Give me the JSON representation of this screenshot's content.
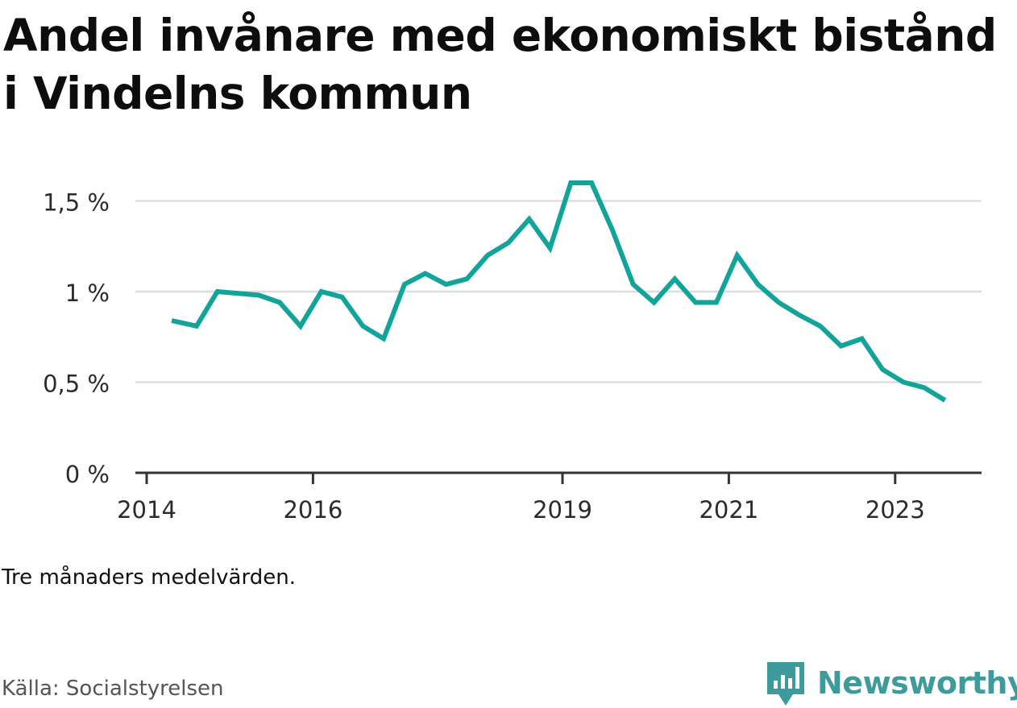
{
  "title": "Andel invånare med ekonomiskt bistånd i Vindelns kommun",
  "note": "Tre månaders medelvärden.",
  "source": "Källa: Socialstyrelsen",
  "brand": "Newsworthy",
  "colors": {
    "line": "#12a39b",
    "grid": "#dddddd",
    "axis": "#333333",
    "brand": "#3d9b9b"
  },
  "icons": {
    "logo": "bar-chart-speech-bubble-icon"
  },
  "chart_data": {
    "type": "line",
    "ylim": [
      0,
      1.6
    ],
    "grid": true,
    "y_ticks": [
      {
        "value": 0,
        "label": "0 %"
      },
      {
        "value": 0.5,
        "label": "0,5 %"
      },
      {
        "value": 1,
        "label": "1 %"
      },
      {
        "value": 1.5,
        "label": "1,5 %"
      }
    ],
    "x_ticks": [
      {
        "value": 2014,
        "label": "2014"
      },
      {
        "value": 2016,
        "label": "2016"
      },
      {
        "value": 2019,
        "label": "2019"
      },
      {
        "value": 2021,
        "label": "2021"
      },
      {
        "value": 2023,
        "label": "2023"
      }
    ],
    "series": [
      {
        "x": [
          2014.3,
          2014.6,
          2014.85,
          2015.1,
          2015.35,
          2015.6,
          2015.85,
          2016.1,
          2016.35,
          2016.6,
          2016.85,
          2017.1,
          2017.35,
          2017.6,
          2017.85,
          2018.1,
          2018.35,
          2018.6,
          2018.85,
          2019.1,
          2019.35,
          2019.6,
          2019.85,
          2020.1,
          2020.35,
          2020.6,
          2020.85,
          2021.1,
          2021.35,
          2021.6,
          2021.85,
          2022.1,
          2022.35,
          2022.6,
          2022.85,
          2023.1,
          2023.35,
          2023.6
        ],
        "values": [
          0.84,
          0.81,
          1.0,
          0.99,
          0.98,
          0.94,
          0.81,
          1.0,
          0.97,
          0.81,
          0.74,
          1.04,
          1.1,
          1.04,
          1.07,
          1.2,
          1.27,
          1.4,
          1.24,
          1.6,
          1.6,
          1.34,
          1.04,
          0.94,
          1.07,
          0.94,
          0.94,
          1.2,
          1.04,
          0.94,
          0.87,
          0.81,
          0.7,
          0.74,
          0.57,
          0.5,
          0.47,
          0.4
        ]
      }
    ]
  }
}
